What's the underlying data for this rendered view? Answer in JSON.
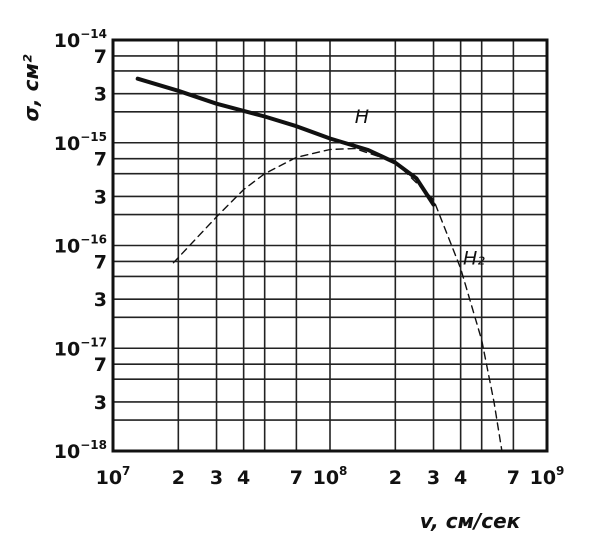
{
  "chart_data": {
    "type": "line",
    "x_scale": "log",
    "y_scale": "log",
    "xlim": [
      10000000.0,
      1000000000.0
    ],
    "ylim": [
      1e-18,
      1e-14
    ],
    "grid": true,
    "xlabel": "v,  см/сек",
    "ylabel": "σ, см²",
    "x_ticks": [
      {
        "v": 10000000.0,
        "base": "10",
        "exp": "7"
      },
      {
        "v": 20000000.0,
        "base": "2",
        "exp": ""
      },
      {
        "v": 30000000.0,
        "base": "3",
        "exp": ""
      },
      {
        "v": 40000000.0,
        "base": "4",
        "exp": ""
      },
      {
        "v": 70000000.0,
        "base": "7",
        "exp": ""
      },
      {
        "v": 100000000.0,
        "base": "10",
        "exp": "8"
      },
      {
        "v": 200000000.0,
        "base": "2",
        "exp": ""
      },
      {
        "v": 300000000.0,
        "base": "3",
        "exp": ""
      },
      {
        "v": 400000000.0,
        "base": "4",
        "exp": ""
      },
      {
        "v": 700000000.0,
        "base": "7",
        "exp": ""
      },
      {
        "v": 1000000000.0,
        "base": "10",
        "exp": "9"
      }
    ],
    "y_ticks": [
      {
        "v": 1e-14,
        "base": "10",
        "exp": "−14"
      },
      {
        "v": 7e-15,
        "base": "7",
        "exp": ""
      },
      {
        "v": 3e-15,
        "base": "3",
        "exp": ""
      },
      {
        "v": 1e-15,
        "base": "10",
        "exp": "−15"
      },
      {
        "v": 7e-16,
        "base": "7",
        "exp": ""
      },
      {
        "v": 3e-16,
        "base": "3",
        "exp": ""
      },
      {
        "v": 1e-16,
        "base": "10",
        "exp": "−16"
      },
      {
        "v": 7e-17,
        "base": "7",
        "exp": ""
      },
      {
        "v": 3e-17,
        "base": "3",
        "exp": ""
      },
      {
        "v": 1e-17,
        "base": "10",
        "exp": "−17"
      },
      {
        "v": 7e-18,
        "base": "7",
        "exp": ""
      },
      {
        "v": 3e-18,
        "base": "3",
        "exp": ""
      },
      {
        "v": 1e-18,
        "base": "10",
        "exp": "−18"
      }
    ],
    "grid_x": [
      10000000.0,
      20000000.0,
      30000000.0,
      40000000.0,
      50000000.0,
      70000000.0,
      100000000.0,
      200000000.0,
      300000000.0,
      400000000.0,
      500000000.0,
      700000000.0,
      1000000000.0
    ],
    "grid_y": [
      1e-14,
      7e-15,
      5e-15,
      3e-15,
      2e-15,
      1e-15,
      7e-16,
      5e-16,
      3e-16,
      2e-16,
      1e-16,
      7e-17,
      5e-17,
      3e-17,
      2e-17,
      1e-17,
      7e-18,
      5e-18,
      3e-18,
      2e-18,
      1e-18
    ],
    "series": [
      {
        "name": "H",
        "style": "solid",
        "color": "#111111",
        "points": [
          [
            13000000.0,
            4.2e-15
          ],
          [
            20000000.0,
            3.2e-15
          ],
          [
            30000000.0,
            2.4e-15
          ],
          [
            50000000.0,
            1.8e-15
          ],
          [
            70000000.0,
            1.45e-15
          ],
          [
            100000000.0,
            1.1e-15
          ],
          [
            150000000.0,
            8.5e-16
          ],
          [
            200000000.0,
            6.4e-16
          ],
          [
            250000000.0,
            4.5e-16
          ],
          [
            300000000.0,
            2.5e-16
          ]
        ]
      },
      {
        "name": "H₂",
        "style": "dashed",
        "color": "#111111",
        "points": [
          [
            19000000.0,
            6.8e-17
          ],
          [
            30000000.0,
            1.9e-16
          ],
          [
            40000000.0,
            3.5e-16
          ],
          [
            50000000.0,
            5e-16
          ],
          [
            70000000.0,
            7.2e-16
          ],
          [
            100000000.0,
            8.6e-16
          ],
          [
            130000000.0,
            8.8e-16
          ],
          [
            200000000.0,
            6.5e-16
          ],
          [
            300000000.0,
            2.8e-16
          ],
          [
            400000000.0,
            6e-17
          ],
          [
            500000000.0,
            1.2e-17
          ],
          [
            570000000.0,
            3e-18
          ],
          [
            620000000.0,
            1e-18
          ]
        ]
      }
    ]
  }
}
